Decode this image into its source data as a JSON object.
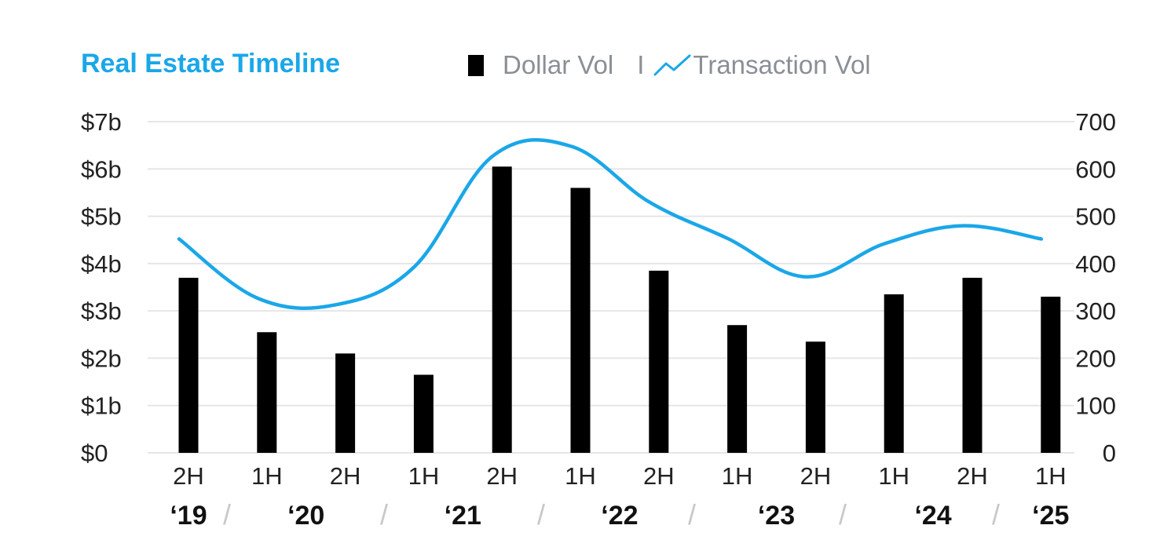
{
  "chart_data": {
    "type": "bar",
    "title": "Real Estate Timeline",
    "legend": {
      "placement": "top",
      "bar_label": "Dollar Vol",
      "separator": "I",
      "line_label": "Transaction Vol"
    },
    "categories": [
      "2H",
      "1H",
      "2H",
      "1H",
      "2H",
      "1H",
      "2H",
      "1H",
      "2H",
      "1H",
      "2H",
      "1H"
    ],
    "year_labels": [
      "‘19",
      "‘20",
      "‘21",
      "‘22",
      "‘23",
      "‘24",
      "‘25"
    ],
    "year_separator": "/",
    "series": [
      {
        "name": "Dollar Vol",
        "type": "bar",
        "axis": "left",
        "color": "#000000",
        "values": [
          3.7,
          2.55,
          2.1,
          1.65,
          6.05,
          5.6,
          3.85,
          2.7,
          2.35,
          3.35,
          3.7,
          3.3
        ]
      },
      {
        "name": "Transaction Vol",
        "type": "line",
        "axis": "right",
        "color": "#1aa7e8",
        "values": [
          452,
          327,
          313,
          393,
          627,
          648,
          530,
          453,
          372,
          442,
          480,
          452
        ]
      }
    ],
    "y_left": {
      "min": 0,
      "max": 7,
      "ticks": [
        0,
        1,
        2,
        3,
        4,
        5,
        6,
        7
      ],
      "tick_labels": [
        "$0",
        "$1b",
        "$2b",
        "$3b",
        "$4b",
        "$5b",
        "$6b",
        "$7b"
      ]
    },
    "y_right": {
      "min": 0,
      "max": 700,
      "ticks": [
        0,
        100,
        200,
        300,
        400,
        500,
        600,
        700
      ],
      "tick_labels": [
        "0",
        "100",
        "200",
        "300",
        "400",
        "500",
        "600",
        "700"
      ]
    },
    "grid": true,
    "colors": {
      "title": "#1aa7e8",
      "line": "#1aa7e8",
      "bar": "#000000",
      "grid": "#e6e6e6",
      "axis_text": "#222222",
      "legend_text": "#8a8f96",
      "separator": "#c8c8c8"
    }
  }
}
